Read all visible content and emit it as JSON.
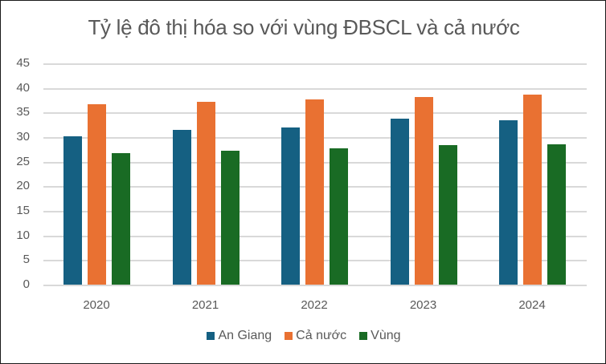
{
  "chart_data": {
    "type": "bar",
    "title": "Tỷ lệ đô thị hóa so với vùng ĐBSCL và cả nước",
    "xlabel": "",
    "ylabel": "",
    "categories": [
      "2020",
      "2021",
      "2022",
      "2023",
      "2024"
    ],
    "series": [
      {
        "name": "An Giang",
        "color": "#156082",
        "values": [
          30.1,
          31.4,
          31.9,
          33.7,
          33.5
        ]
      },
      {
        "name": "Cả nước",
        "color": "#E97132",
        "values": [
          36.7,
          37.1,
          37.6,
          38.1,
          38.6
        ]
      },
      {
        "name": "Vùng",
        "color": "#196B24",
        "values": [
          26.7,
          27.3,
          27.7,
          28.4,
          28.6
        ]
      }
    ],
    "ylim": [
      0,
      45
    ],
    "yticks": [
      0,
      5,
      10,
      15,
      20,
      25,
      30,
      35,
      40,
      45
    ],
    "grid": true,
    "legend_position": "bottom"
  }
}
